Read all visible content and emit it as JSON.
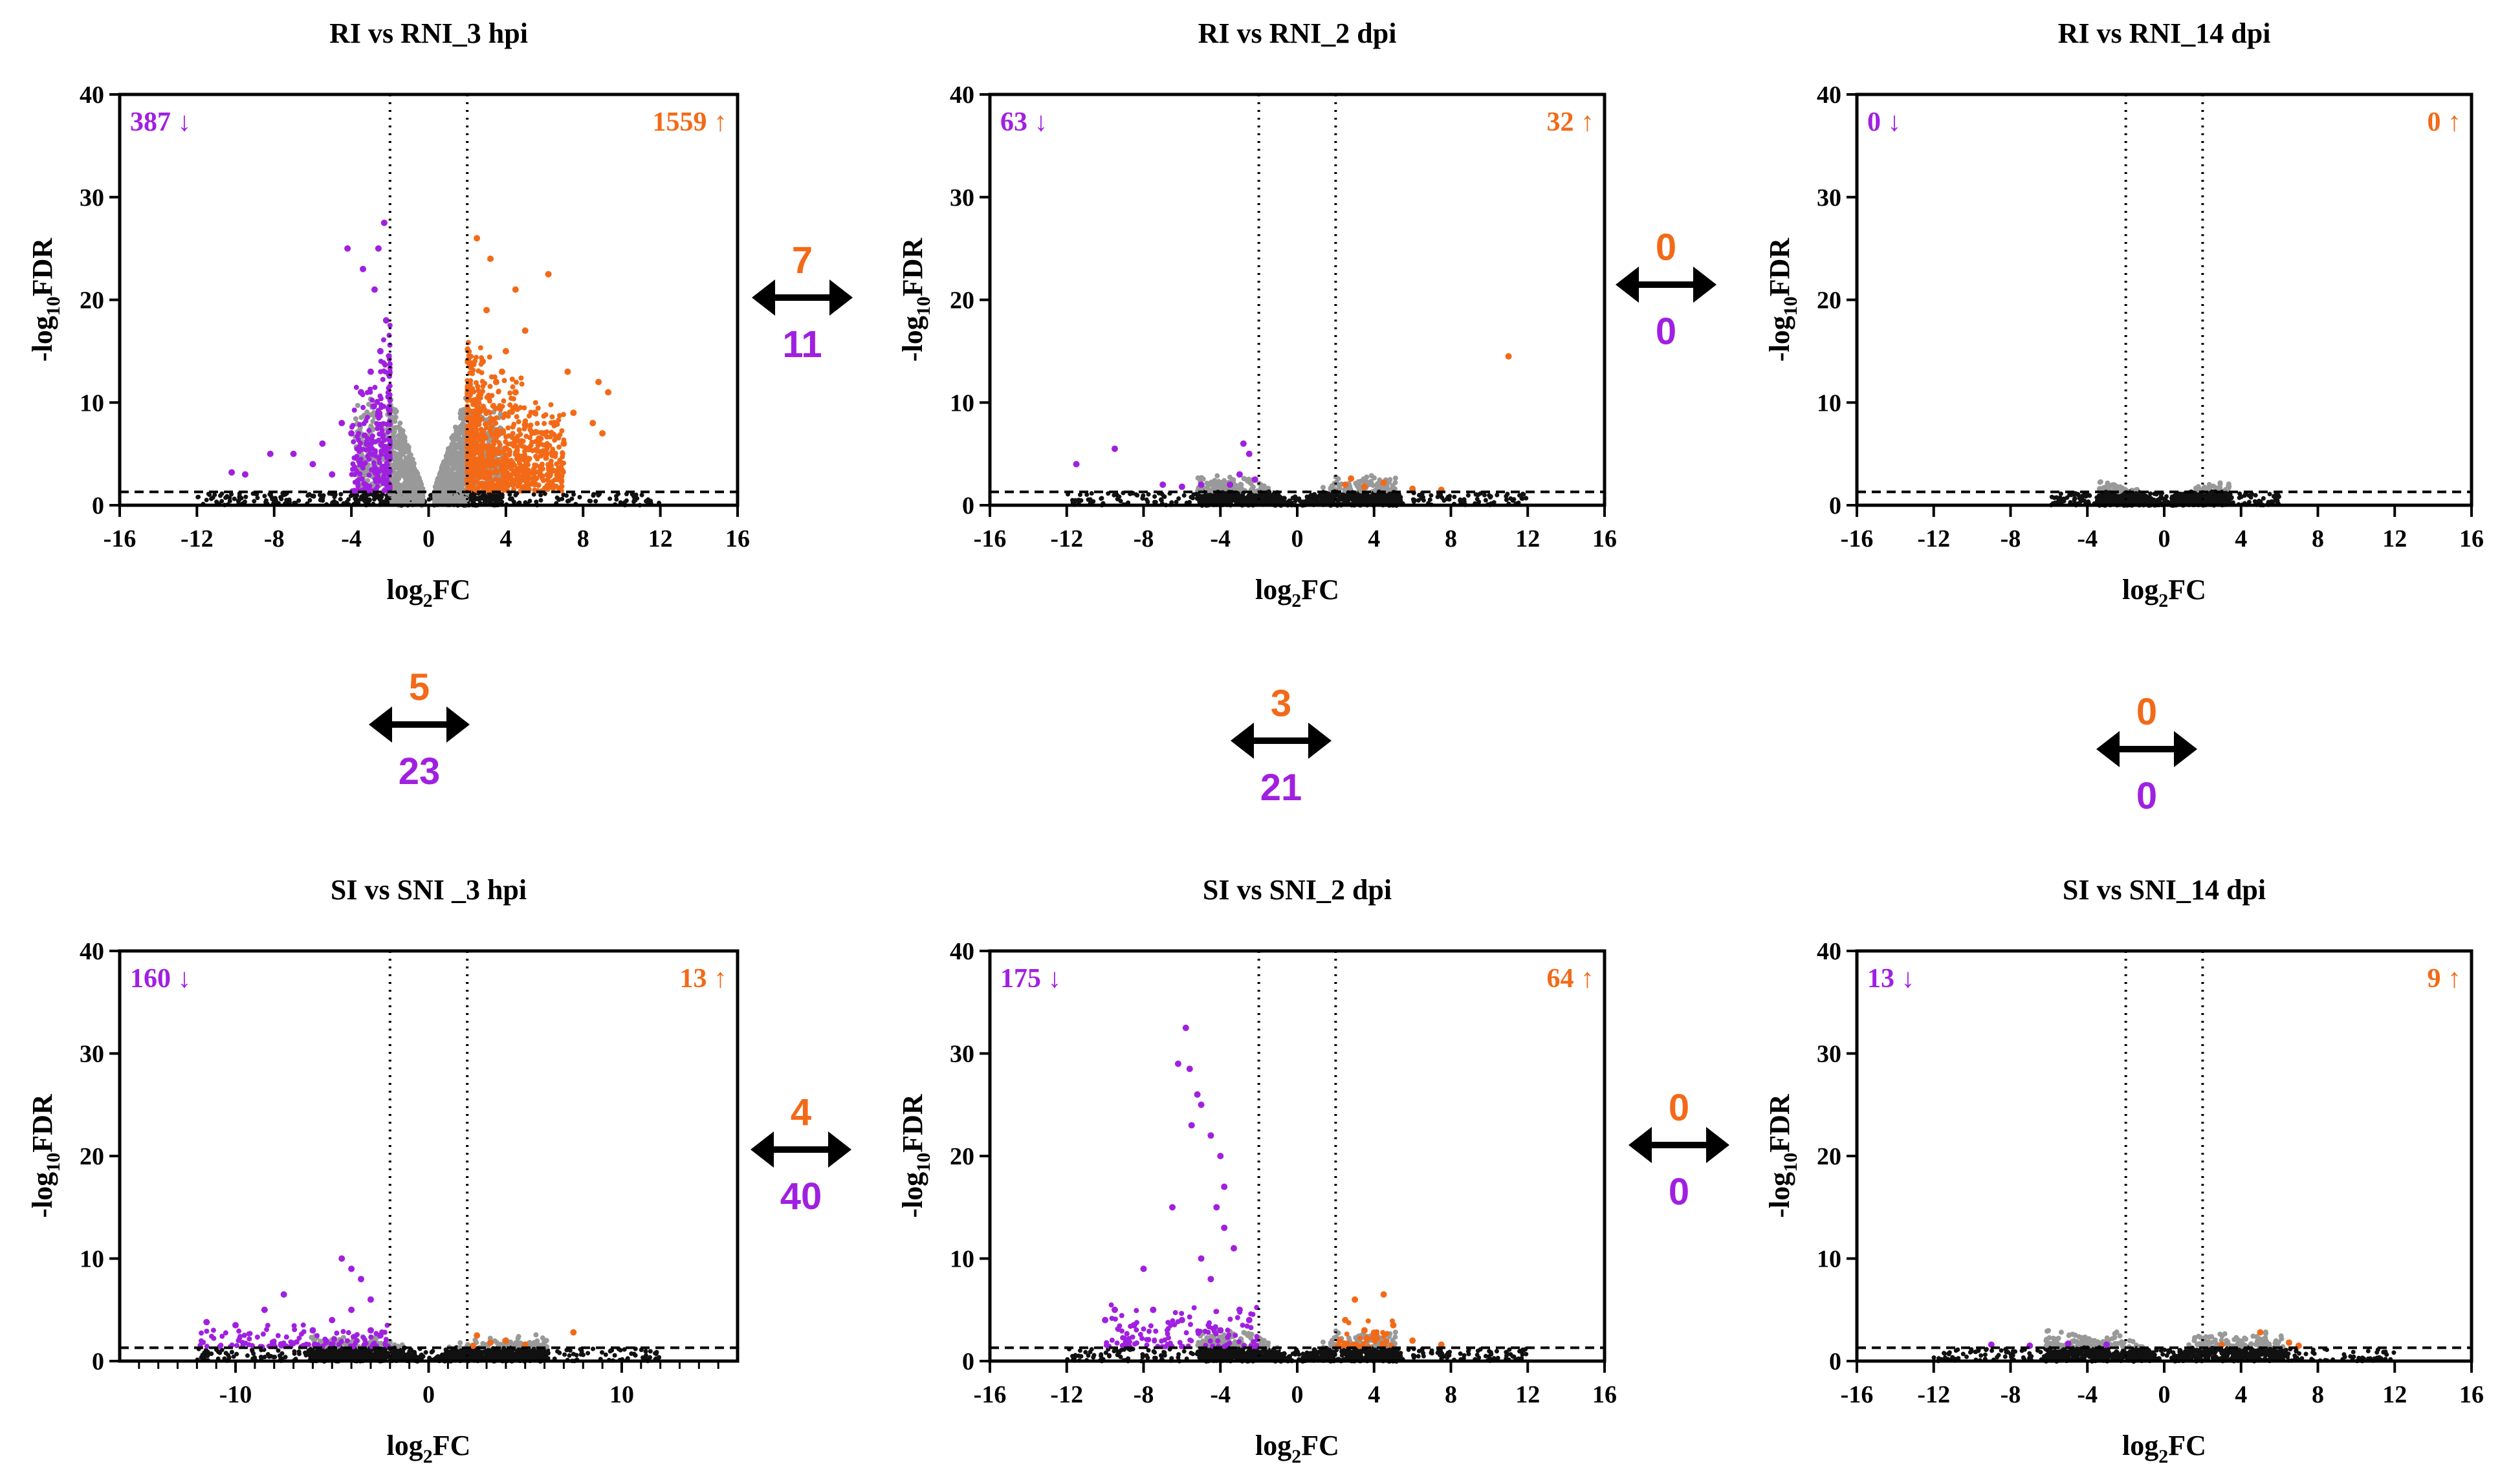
{
  "colors": {
    "up": "#f26a18",
    "down": "#a020e0",
    "ns": "#999999",
    "low": "#111111",
    "axis": "#000000"
  },
  "axis_text": {
    "xlabel_main": "log",
    "xlabel_sub": "2",
    "xlabel_tail": "FC",
    "ylabel_pre": "-log",
    "ylabel_sub": "10",
    "ylabel_tail": "FDR"
  },
  "chart_data": [
    {
      "id": "p11",
      "type": "scatter",
      "title": "RI vs RNI_3 hpi",
      "xlabel": "log2FC",
      "ylabel": "-log10FDR",
      "xlim": [
        -16,
        16
      ],
      "ylim": [
        0,
        40
      ],
      "xticks": [
        "-16",
        "-12",
        "-8",
        "-4",
        "0",
        "4",
        "8",
        "12",
        "16"
      ],
      "yticks": [
        "0",
        "10",
        "20",
        "30",
        "40"
      ],
      "fc_threshold": 2,
      "fdr_threshold": 1.3,
      "down_label": "387 ↓",
      "up_label": "1559 ↑",
      "down_count": 387,
      "up_count": 1559,
      "up_points": [
        [
          2.5,
          26
        ],
        [
          3.2,
          24
        ],
        [
          4.5,
          21
        ],
        [
          6.2,
          22.5
        ],
        [
          3,
          19
        ],
        [
          5,
          17
        ],
        [
          4,
          15
        ],
        [
          7.2,
          13
        ],
        [
          8.8,
          12
        ],
        [
          9.3,
          11
        ],
        [
          7.5,
          9
        ],
        [
          8.5,
          8
        ],
        [
          9,
          7
        ],
        [
          6.5,
          8
        ],
        [
          5.5,
          9
        ],
        [
          3.5,
          12
        ],
        [
          4.5,
          11
        ],
        [
          2.8,
          14
        ],
        [
          3.8,
          13
        ],
        [
          2.4,
          10
        ],
        [
          6,
          7
        ],
        [
          7,
          6
        ]
      ],
      "down_points": [
        [
          -2.3,
          27.5
        ],
        [
          -2.6,
          25
        ],
        [
          -4.2,
          25
        ],
        [
          -2.8,
          21
        ],
        [
          -3.4,
          23
        ],
        [
          -2.2,
          18
        ],
        [
          -2.5,
          15
        ],
        [
          -3,
          13
        ],
        [
          -3.5,
          11
        ],
        [
          -2.6,
          9
        ],
        [
          -4,
          7
        ],
        [
          -5.5,
          6
        ],
        [
          -7,
          5
        ],
        [
          -8.2,
          5
        ],
        [
          -9.5,
          3
        ],
        [
          -6,
          4
        ],
        [
          -4.5,
          8
        ],
        [
          -3.2,
          6
        ],
        [
          -10.2,
          3.2
        ],
        [
          -5,
          3
        ]
      ]
    },
    {
      "id": "p12",
      "type": "scatter",
      "title": "RI vs RNI_2 dpi",
      "xlabel": "log2FC",
      "ylabel": "-log10FDR",
      "xlim": [
        -16,
        16
      ],
      "ylim": [
        0,
        40
      ],
      "xticks": [
        "-16",
        "-12",
        "-8",
        "-4",
        "0",
        "4",
        "8",
        "12",
        "16"
      ],
      "yticks": [
        "0",
        "10",
        "20",
        "30",
        "40"
      ],
      "fc_threshold": 2,
      "fdr_threshold": 1.3,
      "down_label": "63 ↓",
      "up_label": "32 ↑",
      "down_count": 63,
      "up_count": 32,
      "up_points": [
        [
          11,
          14.5
        ],
        [
          2.5,
          2
        ],
        [
          3.5,
          1.8
        ],
        [
          4.5,
          2.2
        ],
        [
          6,
          1.6
        ],
        [
          7.5,
          1.5
        ],
        [
          2.8,
          2.6
        ]
      ],
      "down_points": [
        [
          -2.8,
          6
        ],
        [
          -2.5,
          5
        ],
        [
          -3,
          3
        ],
        [
          -9.5,
          5.5
        ],
        [
          -11.5,
          4
        ],
        [
          -7,
          2
        ],
        [
          -5,
          2
        ],
        [
          -3.5,
          2
        ],
        [
          -2.2,
          2.5
        ],
        [
          -6,
          1.8
        ]
      ]
    },
    {
      "id": "p13",
      "type": "scatter",
      "title": "RI vs RNI_14 dpi",
      "xlabel": "log2FC",
      "ylabel": "-log10FDR",
      "xlim": [
        -16,
        16
      ],
      "ylim": [
        0,
        40
      ],
      "xticks": [
        "-16",
        "-12",
        "-8",
        "-4",
        "0",
        "4",
        "8",
        "12",
        "16"
      ],
      "yticks": [
        "0",
        "10",
        "20",
        "30",
        "40"
      ],
      "fc_threshold": 2,
      "fdr_threshold": 1.3,
      "down_label": "0 ↓",
      "up_label": "0 ↑",
      "down_count": 0,
      "up_count": 0,
      "up_points": [],
      "down_points": []
    },
    {
      "id": "p21",
      "type": "scatter",
      "title": "SI vs SNI _3 hpi",
      "xlabel": "log2FC",
      "ylabel": "-log10FDR",
      "xlim": [
        -16,
        16
      ],
      "ylim": [
        0,
        40
      ],
      "xticks": [
        "-10",
        "0",
        "10"
      ],
      "xtick_values": [
        -10,
        0,
        10
      ],
      "minor_xticks": true,
      "yticks": [
        "0",
        "10",
        "20",
        "30",
        "40"
      ],
      "fc_threshold": 2,
      "fdr_threshold": 1.3,
      "down_label": "160 ↓",
      "up_label": "13 ↑",
      "down_count": 160,
      "up_count": 13,
      "up_points": [
        [
          2.5,
          2.5
        ],
        [
          3.2,
          1.8
        ],
        [
          4,
          2
        ],
        [
          5,
          1.6
        ],
        [
          7.5,
          2.8
        ],
        [
          2.3,
          1.5
        ]
      ],
      "down_points": [
        [
          -4.5,
          10
        ],
        [
          -4,
          9
        ],
        [
          -3.5,
          8
        ],
        [
          -3,
          6
        ],
        [
          -4,
          5
        ],
        [
          -5,
          4
        ],
        [
          -7.5,
          6.5
        ],
        [
          -8.5,
          5
        ],
        [
          -10,
          3.5
        ],
        [
          -11.5,
          3.8
        ],
        [
          -6,
          3
        ],
        [
          -3,
          3
        ],
        [
          -2.5,
          2.5
        ]
      ]
    },
    {
      "id": "p22",
      "type": "scatter",
      "title": "SI vs SNI_2 dpi",
      "xlabel": "log2FC",
      "ylabel": "-log10FDR",
      "xlim": [
        -16,
        16
      ],
      "ylim": [
        0,
        40
      ],
      "xticks": [
        "-16",
        "-12",
        "-8",
        "-4",
        "0",
        "4",
        "8",
        "12",
        "16"
      ],
      "yticks": [
        "0",
        "10",
        "20",
        "30",
        "40"
      ],
      "fc_threshold": 2,
      "fdr_threshold": 1.3,
      "down_label": "175 ↓",
      "up_label": "64 ↑",
      "down_count": 175,
      "up_count": 64,
      "up_points": [
        [
          4.5,
          6.5
        ],
        [
          3,
          6
        ],
        [
          2.5,
          4
        ],
        [
          3.5,
          3
        ],
        [
          5,
          3.5
        ],
        [
          4,
          2.5
        ],
        [
          2.2,
          2
        ],
        [
          7.5,
          1.6
        ],
        [
          6,
          2
        ]
      ],
      "down_points": [
        [
          -5.8,
          32.5
        ],
        [
          -6.2,
          29
        ],
        [
          -5.6,
          28.5
        ],
        [
          -5.2,
          26
        ],
        [
          -5,
          25
        ],
        [
          -5.5,
          23
        ],
        [
          -4.5,
          22
        ],
        [
          -4,
          20
        ],
        [
          -3.8,
          17
        ],
        [
          -4.2,
          15
        ],
        [
          -3.3,
          11
        ],
        [
          -3.8,
          13
        ],
        [
          -6.5,
          15
        ],
        [
          -5,
          10
        ],
        [
          -4.5,
          8
        ],
        [
          -8,
          9
        ],
        [
          -9.5,
          5
        ],
        [
          -7.5,
          5
        ],
        [
          -6,
          4
        ],
        [
          -3,
          5
        ],
        [
          -2.5,
          4
        ],
        [
          -10,
          4
        ],
        [
          -8.5,
          3.5
        ],
        [
          -4,
          3
        ]
      ]
    },
    {
      "id": "p23",
      "type": "scatter",
      "title": "SI vs SNI_14 dpi",
      "xlabel": "log2FC",
      "ylabel": "-log10FDR",
      "xlim": [
        -16,
        16
      ],
      "ylim": [
        0,
        40
      ],
      "xticks": [
        "-16",
        "-12",
        "-8",
        "-4",
        "0",
        "4",
        "8",
        "12",
        "16"
      ],
      "yticks": [
        "0",
        "10",
        "20",
        "30",
        "40"
      ],
      "fc_threshold": 2,
      "fdr_threshold": 1.3,
      "down_label": "13 ↓",
      "up_label": "9 ↑",
      "down_count": 13,
      "up_count": 9,
      "up_points": [
        [
          5,
          2.8
        ],
        [
          6.5,
          1.8
        ],
        [
          3,
          1.6
        ],
        [
          7,
          1.5
        ]
      ],
      "down_points": [
        [
          -9,
          1.6
        ],
        [
          -5,
          1.7
        ],
        [
          -7,
          1.5
        ],
        [
          -3,
          1.6
        ]
      ]
    }
  ],
  "overlaps": [
    {
      "id": "o1",
      "orientation": "horizontal",
      "up": "7",
      "down": "11"
    },
    {
      "id": "o2",
      "orientation": "horizontal",
      "up": "0",
      "down": "0"
    },
    {
      "id": "o3",
      "orientation": "vertical",
      "up": "5",
      "down": "23"
    },
    {
      "id": "o4",
      "orientation": "vertical",
      "up": "3",
      "down": "21"
    },
    {
      "id": "o5",
      "orientation": "vertical",
      "up": "0",
      "down": "0"
    },
    {
      "id": "o6",
      "orientation": "horizontal",
      "up": "4",
      "down": "40"
    },
    {
      "id": "o7",
      "orientation": "horizontal",
      "up": "0",
      "down": "0"
    }
  ]
}
